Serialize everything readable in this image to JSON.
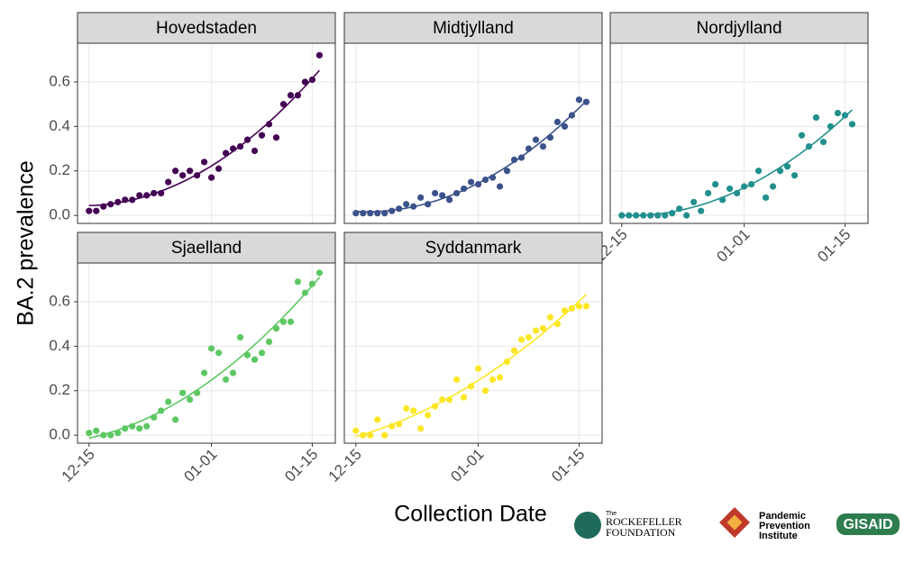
{
  "chart_data": {
    "type": "scatter",
    "xlabel": "Collection Date",
    "ylabel": "BA.2 prevalence",
    "x": [
      0,
      1,
      2,
      3,
      4,
      5,
      6,
      7,
      8,
      9,
      10,
      11,
      12,
      13,
      14,
      15,
      16,
      17,
      18,
      19,
      20,
      21,
      22,
      23,
      24,
      25,
      26,
      27,
      28,
      29,
      30,
      31,
      32
    ],
    "xlim": [
      -1.6,
      34.2
    ],
    "xticks": [
      {
        "value": 0,
        "label": "12-15"
      },
      {
        "value": 17,
        "label": "01-01"
      },
      {
        "value": 31,
        "label": "01-15"
      }
    ],
    "ylim": [
      -0.036,
      0.774
    ],
    "yticks": [
      {
        "value": 0,
        "label": "0.0"
      },
      0.2,
      0.4,
      0.6
    ],
    "grid": true,
    "series": [
      {
        "name": "Hovedstaden",
        "color": "#440154",
        "values": [
          0.02,
          0.02,
          0.04,
          0.05,
          0.06,
          0.07,
          0.07,
          0.09,
          0.09,
          0.1,
          0.1,
          0.15,
          0.2,
          0.18,
          0.2,
          0.18,
          0.24,
          0.17,
          0.21,
          0.28,
          0.3,
          0.31,
          0.34,
          0.29,
          0.36,
          0.41,
          0.35,
          0.5,
          0.54,
          0.54,
          0.6,
          0.61,
          0.72
        ]
      },
      {
        "name": "Midtjylland",
        "color": "#3b528b",
        "values": [
          0.01,
          0.01,
          0.01,
          0.01,
          0.01,
          0.02,
          0.03,
          0.05,
          0.04,
          0.08,
          0.05,
          0.1,
          0.09,
          0.07,
          0.1,
          0.12,
          0.15,
          0.14,
          0.16,
          0.17,
          0.13,
          0.2,
          0.25,
          0.26,
          0.3,
          0.34,
          0.31,
          0.35,
          0.42,
          0.4,
          0.45,
          0.52,
          0.51
        ]
      },
      {
        "name": "Nordjylland",
        "color": "#21908c",
        "values": [
          0,
          0,
          0,
          0,
          0,
          0,
          0,
          0.01,
          0.03,
          0,
          0.06,
          0.02,
          0.1,
          0.14,
          0.07,
          0.12,
          0.1,
          0.13,
          0.14,
          0.2,
          0.08,
          0.13,
          0.2,
          0.22,
          0.18,
          0.36,
          0.31,
          0.44,
          0.33,
          0.4,
          0.46,
          0.45,
          0.41
        ]
      },
      {
        "name": "Sjaelland",
        "color": "#5dc863",
        "values": [
          0.01,
          0.02,
          0,
          0,
          0.01,
          0.03,
          0.04,
          0.03,
          0.04,
          0.08,
          0.11,
          0.15,
          0.07,
          0.19,
          0.16,
          0.19,
          0.28,
          0.39,
          0.37,
          0.25,
          0.28,
          0.44,
          0.36,
          0.34,
          0.37,
          0.42,
          0.48,
          0.51,
          0.51,
          0.69,
          0.64,
          0.68,
          0.73
        ]
      },
      {
        "name": "Syddanmark",
        "color": "#fde725",
        "values": [
          0.02,
          0,
          0,
          0.07,
          0,
          0.04,
          0.05,
          0.12,
          0.11,
          0.03,
          0.09,
          0.13,
          0.16,
          0.16,
          0.25,
          0.17,
          0.22,
          0.3,
          0.2,
          0.25,
          0.26,
          0.33,
          0.38,
          0.43,
          0.44,
          0.47,
          0.48,
          0.53,
          0.5,
          0.56,
          0.57,
          0.58,
          0.58
        ]
      }
    ]
  },
  "logos": [
    "The",
    "ROCKEFELLER",
    "FOUNDATION",
    "Pandemic",
    "Prevention",
    "Institute",
    "GISAID"
  ]
}
